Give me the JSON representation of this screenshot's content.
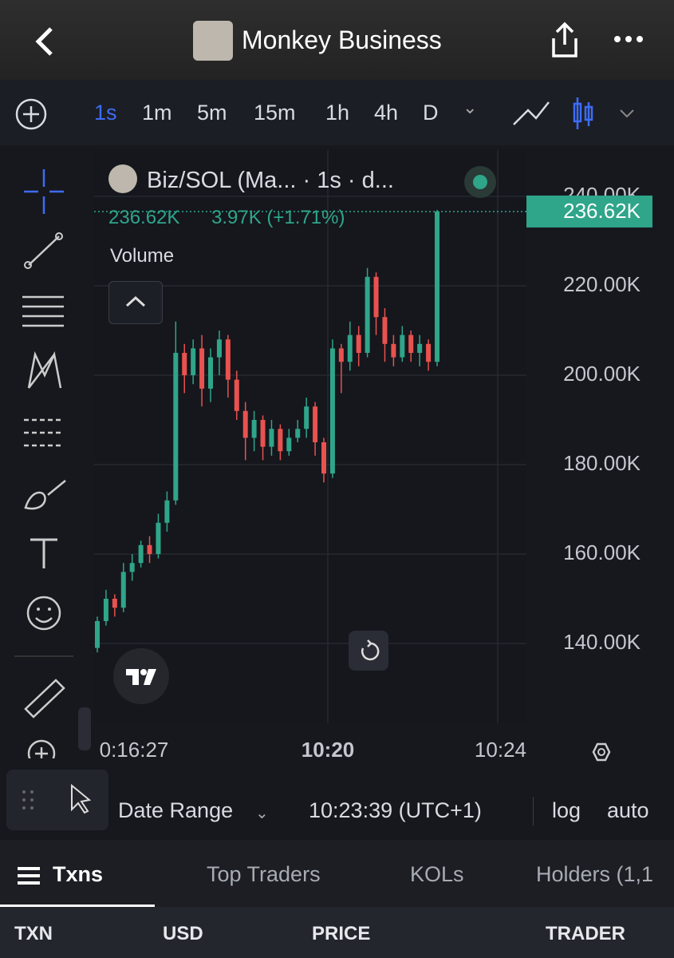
{
  "header": {
    "title": "Monkey Business"
  },
  "intervals": [
    "1s",
    "1m",
    "5m",
    "15m",
    "1h",
    "4h",
    "D"
  ],
  "chart_data": {
    "type": "candlestick",
    "title": "Biz/SOL (Ma... · 1s · d...",
    "last_value": "236.62K",
    "change": "3.97K (+1.71%)",
    "indicator": "Volume",
    "x_labels": [
      "0:16:27",
      "10:20",
      "10:24"
    ],
    "up_color": "#2fa58a",
    "down_color": "#e8524f",
    "grid": true,
    "ylim": [
      122140,
      250360
    ],
    "yticks": [
      {
        "value": 140000,
        "label": "140.00K"
      },
      {
        "value": 160000,
        "label": "160.00K"
      },
      {
        "value": 180000,
        "label": "180.00K"
      },
      {
        "value": 200000,
        "label": "200.00K"
      },
      {
        "value": 220000,
        "label": "220.00K"
      },
      {
        "value": 240000,
        "label": "240.00K"
      }
    ],
    "last_price": {
      "value": 236620,
      "label": "236.62K"
    },
    "series": [
      {
        "open": [
          139000,
          145000,
          150000,
          148000,
          156000,
          158000,
          162000,
          160000,
          167000,
          172000,
          205000,
          200000,
          206000,
          197000,
          204000,
          208000,
          199000,
          192000,
          186000,
          190000,
          184000,
          188000,
          183000,
          186000,
          188000,
          193000,
          185000,
          178000,
          206000,
          203000,
          209000,
          205000,
          222000,
          213000,
          207000,
          204000,
          209000,
          205000,
          207000,
          203000
        ],
        "high": [
          146000,
          152000,
          151000,
          158000,
          160000,
          163000,
          164000,
          169000,
          174000,
          212000,
          207000,
          208000,
          209000,
          206000,
          210000,
          209000,
          201000,
          194000,
          192000,
          191000,
          190000,
          189000,
          188000,
          190000,
          195000,
          194000,
          186000,
          208000,
          207000,
          212000,
          211000,
          224000,
          223000,
          215000,
          209000,
          211000,
          210000,
          209000,
          208000,
          237000
        ],
        "low": [
          138000,
          144000,
          146000,
          147000,
          154000,
          157000,
          158000,
          159000,
          165000,
          171000,
          196000,
          198000,
          193000,
          194000,
          200000,
          195000,
          190000,
          181000,
          183000,
          181000,
          182000,
          181000,
          182000,
          185000,
          186000,
          182000,
          176000,
          177000,
          196000,
          201000,
          202000,
          204000,
          209000,
          203000,
          202000,
          203000,
          203000,
          202000,
          201000,
          202000
        ],
        "close": [
          145000,
          150000,
          148000,
          156000,
          158000,
          162000,
          160000,
          167000,
          172000,
          205000,
          200000,
          206000,
          197000,
          204000,
          208000,
          199000,
          192000,
          186000,
          190000,
          184000,
          188000,
          183000,
          186000,
          188000,
          193000,
          185000,
          178000,
          206000,
          203000,
          209000,
          205000,
          222000,
          213000,
          207000,
          204000,
          209000,
          205000,
          207000,
          203000,
          236620
        ]
      }
    ]
  },
  "footer": {
    "date_range": "Date Range",
    "time": "10:23:39 (UTC+1)",
    "log": "log",
    "auto": "auto"
  },
  "tabs": [
    "Txns",
    "Top Traders",
    "KOLs",
    "Holders (1,1"
  ],
  "columns": [
    "TXN",
    "USD",
    "PRICE",
    "TRADER"
  ]
}
